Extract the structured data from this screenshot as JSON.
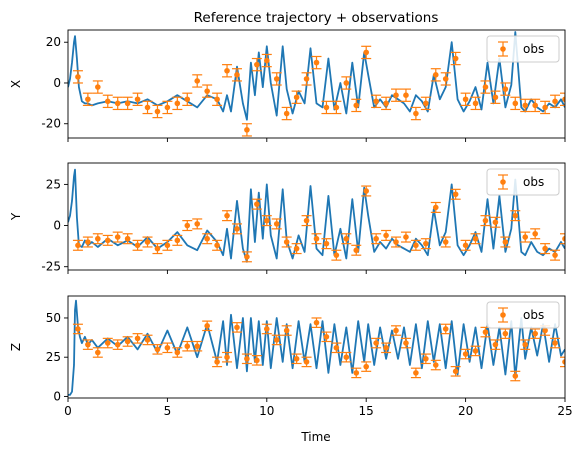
{
  "figure": {
    "title": "Reference trajectory + observations",
    "xlabel": "Time"
  },
  "colors": {
    "trajectory": "#1f77b4",
    "observation": "#ff7f0e",
    "axes": "#000000",
    "legend_border": "#cccccc"
  },
  "chart_data": [
    {
      "type": "line",
      "ylabel": "X",
      "xlim": [
        0,
        25
      ],
      "ylim": [
        -27,
        26
      ],
      "xticks": [
        0,
        5,
        10,
        15,
        20,
        25
      ],
      "yticks": [
        20,
        0,
        -20
      ],
      "legend": {
        "label": "obs",
        "position": "top-right"
      },
      "series": [
        {
          "kind": "trajectory",
          "x": [
            0,
            0.1,
            0.2,
            0.3,
            0.35,
            0.45,
            0.55,
            0.7,
            0.85,
            1.0,
            1.2,
            1.5,
            2.0,
            2.5,
            3.0,
            3.5,
            4.0,
            4.5,
            5.0,
            5.5,
            6.0,
            6.5,
            7.0,
            7.5,
            7.8,
            8.0,
            8.2,
            8.5,
            8.8,
            9.0,
            9.2,
            9.4,
            9.6,
            9.8,
            10.0,
            10.2,
            10.5,
            10.8,
            11.0,
            11.3,
            11.6,
            11.9,
            12.2,
            12.5,
            12.8,
            13.1,
            13.4,
            13.7,
            14.0,
            14.3,
            14.6,
            14.9,
            15.1,
            15.4,
            15.7,
            16.0,
            16.3,
            16.6,
            16.9,
            17.2,
            17.5,
            17.8,
            18.1,
            18.4,
            18.7,
            19.0,
            19.3,
            19.6,
            19.9,
            20.2,
            20.5,
            20.8,
            21.1,
            21.4,
            21.7,
            22.0,
            22.3,
            22.5,
            22.8,
            23.0,
            23.3,
            23.6,
            23.9,
            24.2,
            24.5,
            24.8,
            25.0
          ],
          "y": [
            -2,
            2,
            10,
            20,
            23,
            12,
            -2,
            -9,
            -10,
            -10,
            -11,
            -10,
            -9,
            -10,
            -9,
            -10,
            -8,
            -11,
            -9,
            -6,
            -9,
            -12,
            -6,
            -8,
            -14,
            -6,
            -14,
            8,
            -10,
            -18,
            10,
            -6,
            15,
            -2,
            18,
            0,
            -16,
            18,
            -3,
            -15,
            -4,
            -10,
            17,
            -10,
            -12,
            12,
            -13,
            0,
            -15,
            10,
            -12,
            15,
            4,
            -12,
            -8,
            -12,
            -6,
            -8,
            -10,
            -14,
            -6,
            -9,
            -14,
            4,
            -8,
            -2,
            20,
            -8,
            -14,
            -9,
            -2,
            -13,
            10,
            -10,
            12,
            -12,
            -1,
            25,
            -12,
            -14,
            -8,
            -12,
            -14,
            -10,
            -12,
            -8,
            -12
          ]
        },
        {
          "kind": "observations",
          "name": "obs",
          "x": [
            0.5,
            1.0,
            1.5,
            2.0,
            2.5,
            3.0,
            3.5,
            4.0,
            4.5,
            5.0,
            5.5,
            6.0,
            6.5,
            7.0,
            7.5,
            8.0,
            8.5,
            9.0,
            9.5,
            10.0,
            10.5,
            11.0,
            11.5,
            12.0,
            12.5,
            13.0,
            13.5,
            14.0,
            14.5,
            15.0,
            15.5,
            16.0,
            16.5,
            17.0,
            17.5,
            18.0,
            18.5,
            19.0,
            19.5,
            20.0,
            20.5,
            21.0,
            21.5,
            22.0,
            22.5,
            23.0,
            23.5,
            24.0,
            24.5,
            25.0
          ],
          "y": [
            3,
            -8,
            -2,
            -9,
            -10,
            -10,
            -8,
            -12,
            -14,
            -12,
            -10,
            -8,
            1,
            -4,
            -8,
            6,
            4,
            -23,
            9,
            11,
            2,
            -15,
            -7,
            2,
            10,
            -12,
            -12,
            0,
            -11,
            15,
            -9,
            -10,
            -6,
            -6,
            -15,
            -10,
            4,
            2,
            12,
            -8,
            -10,
            -2,
            -7,
            -3,
            -10,
            -11,
            -11,
            -12,
            -9,
            -8
          ],
          "err": [
            3,
            3,
            3,
            3,
            3,
            3,
            3,
            3,
            3,
            3,
            3,
            3,
            3,
            3,
            3,
            3,
            3,
            3,
            3,
            3,
            3,
            3,
            3,
            3,
            3,
            3,
            3,
            3,
            3,
            3,
            3,
            3,
            3,
            3,
            3,
            3,
            3,
            3,
            3,
            3,
            3,
            3,
            3,
            3,
            3,
            3,
            3,
            3,
            3,
            3
          ]
        }
      ]
    },
    {
      "type": "line",
      "ylabel": "Y",
      "xlim": [
        0,
        25
      ],
      "ylim": [
        -27,
        38
      ],
      "xticks": [
        0,
        5,
        10,
        15,
        20,
        25
      ],
      "yticks": [
        25,
        0,
        -25
      ],
      "legend": {
        "label": "obs",
        "position": "top-right"
      },
      "series": [
        {
          "kind": "trajectory",
          "x": [
            0,
            0.1,
            0.2,
            0.3,
            0.35,
            0.45,
            0.55,
            0.7,
            0.85,
            1.0,
            1.2,
            1.5,
            2.0,
            2.5,
            3.0,
            3.5,
            4.0,
            4.5,
            5.0,
            5.5,
            6.0,
            6.5,
            7.0,
            7.5,
            7.8,
            8.0,
            8.2,
            8.5,
            8.8,
            9.0,
            9.2,
            9.4,
            9.6,
            9.8,
            10.0,
            10.2,
            10.5,
            10.8,
            11.0,
            11.3,
            11.6,
            11.9,
            12.2,
            12.5,
            12.8,
            13.1,
            13.4,
            13.7,
            14.0,
            14.3,
            14.6,
            14.9,
            15.1,
            15.4,
            15.7,
            16.0,
            16.3,
            16.6,
            16.9,
            17.2,
            17.5,
            17.8,
            18.1,
            18.4,
            18.7,
            19.0,
            19.3,
            19.6,
            19.9,
            20.2,
            20.5,
            20.8,
            21.1,
            21.4,
            21.7,
            22.0,
            22.3,
            22.5,
            22.8,
            23.0,
            23.3,
            23.6,
            23.9,
            24.2,
            24.5,
            24.8,
            25.0
          ],
          "y": [
            2,
            6,
            15,
            30,
            34,
            5,
            -12,
            -13,
            -9,
            -12,
            -10,
            -13,
            -8,
            -12,
            -9,
            -13,
            -7,
            -14,
            -10,
            -4,
            -12,
            -15,
            -3,
            -10,
            -18,
            -2,
            -20,
            15,
            -14,
            -22,
            22,
            -10,
            20,
            -8,
            25,
            -6,
            -20,
            22,
            -9,
            -20,
            -6,
            -16,
            24,
            -14,
            -18,
            18,
            -18,
            -2,
            -20,
            16,
            -16,
            23,
            6,
            -16,
            -10,
            -14,
            -8,
            -12,
            -14,
            -16,
            -8,
            -12,
            -18,
            10,
            -12,
            -4,
            25,
            -12,
            -18,
            -12,
            -4,
            -16,
            16,
            -14,
            18,
            -16,
            -2,
            28,
            -16,
            -18,
            -10,
            -16,
            -18,
            -14,
            -16,
            -10,
            -14
          ]
        },
        {
          "kind": "observations",
          "name": "obs",
          "x": [
            0.5,
            1.0,
            1.5,
            2.0,
            2.5,
            3.0,
            3.5,
            4.0,
            4.5,
            5.0,
            5.5,
            6.0,
            6.5,
            7.0,
            7.5,
            8.0,
            8.5,
            9.0,
            9.5,
            10.0,
            10.5,
            11.0,
            11.5,
            12.0,
            12.5,
            13.0,
            13.5,
            14.0,
            14.5,
            15.0,
            15.5,
            16.0,
            16.5,
            17.0,
            17.5,
            18.0,
            18.5,
            19.0,
            19.5,
            20.0,
            20.5,
            21.0,
            21.5,
            22.0,
            22.5,
            23.0,
            23.5,
            24.0,
            24.5,
            25.0
          ],
          "y": [
            -12,
            -10,
            -8,
            -9,
            -7,
            -8,
            -12,
            -10,
            -14,
            -12,
            -9,
            0,
            1,
            -8,
            -12,
            6,
            -2,
            -19,
            13,
            3,
            1,
            -10,
            -14,
            3,
            -8,
            -11,
            -18,
            -8,
            -15,
            21,
            -8,
            -6,
            -10,
            -7,
            -12,
            -11,
            11,
            -10,
            19,
            -12,
            -8,
            3,
            2,
            -10,
            6,
            -7,
            -5,
            -14,
            -18,
            -8
          ],
          "err": [
            3,
            3,
            3,
            3,
            3,
            3,
            3,
            3,
            3,
            3,
            3,
            3,
            3,
            3,
            3,
            3,
            3,
            3,
            3,
            3,
            3,
            3,
            3,
            3,
            3,
            3,
            3,
            3,
            3,
            3,
            3,
            3,
            3,
            3,
            3,
            3,
            3,
            3,
            3,
            3,
            3,
            3,
            3,
            3,
            3,
            3,
            3,
            3,
            3,
            3
          ]
        }
      ]
    },
    {
      "type": "line",
      "ylabel": "Z",
      "xlim": [
        0,
        25
      ],
      "ylim": [
        -1,
        64
      ],
      "xticks": [
        0,
        5,
        10,
        15,
        20,
        25
      ],
      "xticklabels": [
        "0",
        "5",
        "10",
        "15",
        "20",
        "25"
      ],
      "yticks": [
        50,
        25,
        0
      ],
      "legend": {
        "label": "obs",
        "position": "top-right"
      },
      "series": [
        {
          "kind": "trajectory",
          "x": [
            0,
            0.1,
            0.2,
            0.3,
            0.35,
            0.4,
            0.5,
            0.6,
            0.7,
            0.85,
            1.0,
            1.2,
            1.5,
            2.0,
            2.5,
            3.0,
            3.5,
            4.0,
            4.5,
            5.0,
            5.5,
            6.0,
            6.5,
            7.0,
            7.5,
            7.8,
            8.0,
            8.2,
            8.5,
            8.8,
            9.0,
            9.2,
            9.4,
            9.6,
            9.8,
            10.0,
            10.2,
            10.5,
            10.8,
            11.0,
            11.3,
            11.6,
            11.9,
            12.2,
            12.5,
            12.8,
            13.1,
            13.4,
            13.7,
            14.0,
            14.3,
            14.6,
            14.9,
            15.1,
            15.4,
            15.7,
            16.0,
            16.3,
            16.6,
            16.9,
            17.2,
            17.5,
            17.8,
            18.1,
            18.4,
            18.7,
            19.0,
            19.3,
            19.6,
            19.9,
            20.2,
            20.5,
            20.8,
            21.1,
            21.4,
            21.7,
            22.0,
            22.3,
            22.5,
            22.8,
            23.0,
            23.3,
            23.6,
            23.9,
            24.2,
            24.5,
            24.8,
            25.0
          ],
          "y": [
            1,
            1,
            3,
            20,
            55,
            61,
            45,
            38,
            34,
            38,
            33,
            36,
            31,
            37,
            32,
            38,
            30,
            40,
            28,
            42,
            27,
            44,
            25,
            46,
            22,
            48,
            20,
            52,
            18,
            50,
            16,
            50,
            22,
            48,
            20,
            48,
            18,
            50,
            22,
            46,
            18,
            48,
            22,
            46,
            18,
            48,
            15,
            46,
            20,
            44,
            15,
            48,
            22,
            46,
            20,
            44,
            24,
            42,
            24,
            44,
            20,
            46,
            18,
            48,
            22,
            46,
            18,
            48,
            14,
            46,
            22,
            44,
            18,
            46,
            20,
            44,
            14,
            48,
            12,
            50,
            24,
            44,
            26,
            46,
            22,
            46,
            26,
            30
          ]
        },
        {
          "kind": "observations",
          "name": "obs",
          "x": [
            0.5,
            1.0,
            1.5,
            2.0,
            2.5,
            3.0,
            3.5,
            4.0,
            4.5,
            5.0,
            5.5,
            6.0,
            6.5,
            7.0,
            7.5,
            8.0,
            8.5,
            9.0,
            9.5,
            10.0,
            10.5,
            11.0,
            11.5,
            12.0,
            12.5,
            13.0,
            13.5,
            14.0,
            14.5,
            15.0,
            15.5,
            16.0,
            16.5,
            17.0,
            17.5,
            18.0,
            18.5,
            19.0,
            19.5,
            20.0,
            20.5,
            21.0,
            21.5,
            22.0,
            22.5,
            23.0,
            23.5,
            24.0,
            24.5,
            25.0
          ],
          "y": [
            43,
            33,
            28,
            34,
            33,
            35,
            37,
            36,
            30,
            31,
            28,
            32,
            32,
            45,
            22,
            25,
            44,
            24,
            23,
            43,
            36,
            42,
            24,
            22,
            47,
            38,
            31,
            25,
            15,
            19,
            34,
            31,
            42,
            34,
            15,
            24,
            20,
            43,
            16,
            27,
            29,
            41,
            33,
            40,
            13,
            33,
            40,
            42,
            34,
            22
          ],
          "err": [
            3,
            3,
            3,
            3,
            3,
            3,
            3,
            3,
            3,
            3,
            3,
            3,
            3,
            3,
            3,
            3,
            3,
            3,
            3,
            3,
            3,
            3,
            3,
            3,
            3,
            3,
            3,
            3,
            3,
            3,
            3,
            3,
            3,
            3,
            3,
            3,
            3,
            3,
            3,
            3,
            3,
            3,
            3,
            3,
            3,
            3,
            3,
            3,
            3,
            3
          ]
        }
      ]
    }
  ]
}
